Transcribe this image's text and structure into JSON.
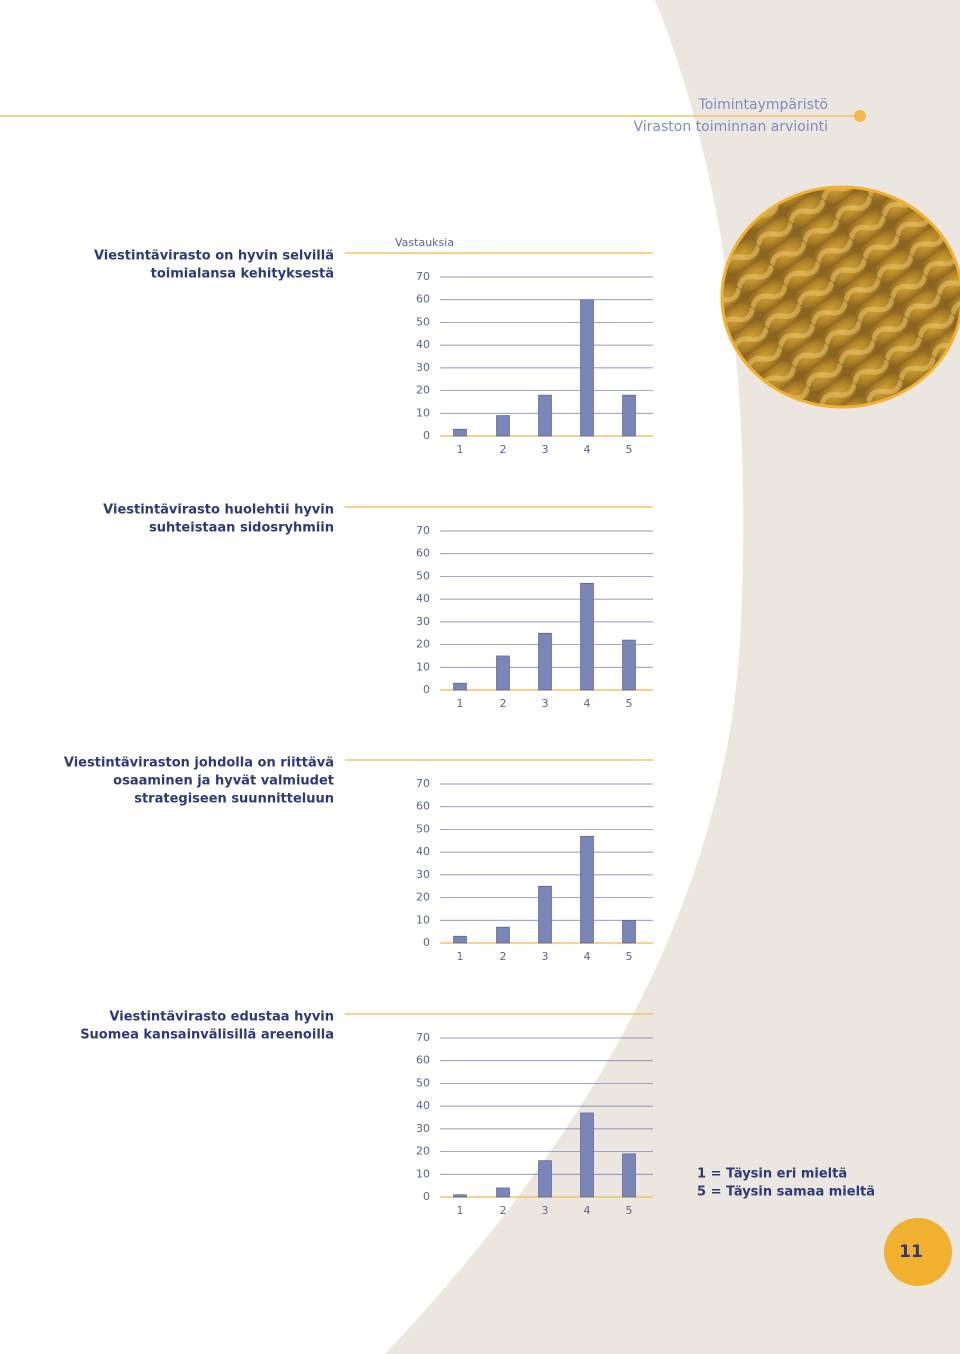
{
  "header": {
    "section": "Toimintaympäristö",
    "subsection": "Viraston toiminnan arviointi"
  },
  "chart_data": [
    {
      "type": "bar",
      "title": [
        "Viestintävirasto on hyvin selvillä",
        "toimialansa kehityksestä"
      ],
      "y_label": "Vastauksia",
      "categories": [
        "1",
        "2",
        "3",
        "4",
        "5"
      ],
      "values": [
        3,
        9,
        18,
        60,
        18
      ],
      "color": "#7b86b8",
      "ylim": [
        0,
        70
      ],
      "yticks": [
        0,
        10,
        20,
        30,
        40,
        50,
        60,
        70
      ],
      "grid": true
    },
    {
      "type": "bar",
      "title": [
        "Viestintävirasto huolehtii hyvin",
        "suhteistaan sidosryhmiin"
      ],
      "categories": [
        "1",
        "2",
        "3",
        "4",
        "5"
      ],
      "values": [
        3,
        15,
        25,
        47,
        22
      ],
      "color": "#7b86b8",
      "ylim": [
        0,
        70
      ],
      "yticks": [
        0,
        10,
        20,
        30,
        40,
        50,
        60,
        70
      ],
      "grid": true
    },
    {
      "type": "bar",
      "title": [
        "Viestintäviraston johdolla on riittävä",
        "osaaminen ja hyvät valmiudet",
        "strategiseen suunnitteluun"
      ],
      "categories": [
        "1",
        "2",
        "3",
        "4",
        "5"
      ],
      "values": [
        3,
        7,
        25,
        47,
        10
      ],
      "color": "#7b86b8",
      "ylim": [
        0,
        70
      ],
      "yticks": [
        0,
        10,
        20,
        30,
        40,
        50,
        60,
        70
      ],
      "grid": true
    },
    {
      "type": "bar",
      "title": [
        "Viestintävirasto edustaa hyvin",
        "Suomea kansainvälisillä areenoilla"
      ],
      "categories": [
        "1",
        "2",
        "3",
        "4",
        "5"
      ],
      "values": [
        1,
        4,
        16,
        37,
        19
      ],
      "color": "#7b86b8",
      "ylim": [
        0,
        70
      ],
      "yticks": [
        0,
        10,
        20,
        30,
        40,
        50,
        60,
        70
      ],
      "grid": true
    }
  ],
  "legend_note": [
    "1 = Täysin eri mieltä",
    "5 = Täysin samaa mieltä"
  ],
  "page_number": "11"
}
